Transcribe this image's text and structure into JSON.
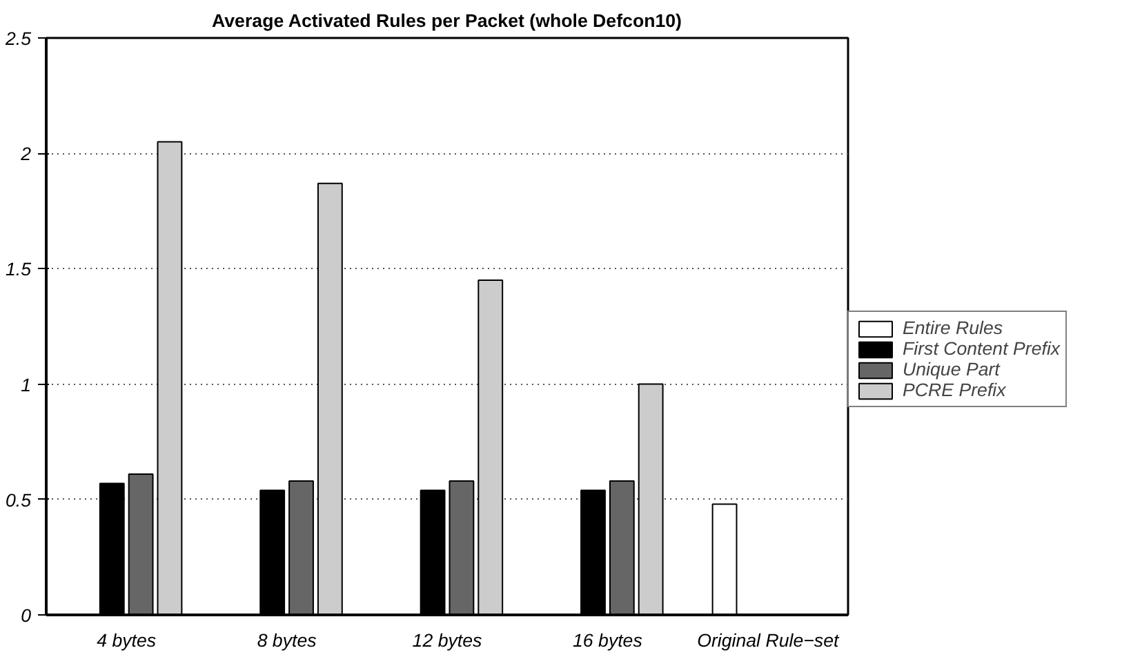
{
  "chart_data": {
    "type": "bar",
    "title": "Average Activated Rules per Packet (whole Defcon10)",
    "categories": [
      "4 bytes",
      "8 bytes",
      "12 bytes",
      "16 bytes",
      "Original Rule−set"
    ],
    "series": [
      {
        "name": "Entire Rules",
        "color": "#ffffff",
        "values": [
          null,
          null,
          null,
          null,
          0.48
        ]
      },
      {
        "name": "First Content Prefix",
        "color": "#000000",
        "values": [
          0.57,
          0.54,
          0.54,
          0.54,
          null
        ]
      },
      {
        "name": "Unique Part",
        "color": "#666666",
        "values": [
          0.61,
          0.58,
          0.58,
          0.58,
          null
        ]
      },
      {
        "name": "PCRE Prefix",
        "color": "#cccccc",
        "values": [
          2.05,
          1.87,
          1.45,
          1.0,
          null
        ]
      }
    ],
    "ylim": [
      0,
      2.5
    ],
    "yticks": [
      0,
      0.5,
      1,
      1.5,
      2,
      2.5
    ],
    "grid": "y",
    "legend": "right"
  }
}
